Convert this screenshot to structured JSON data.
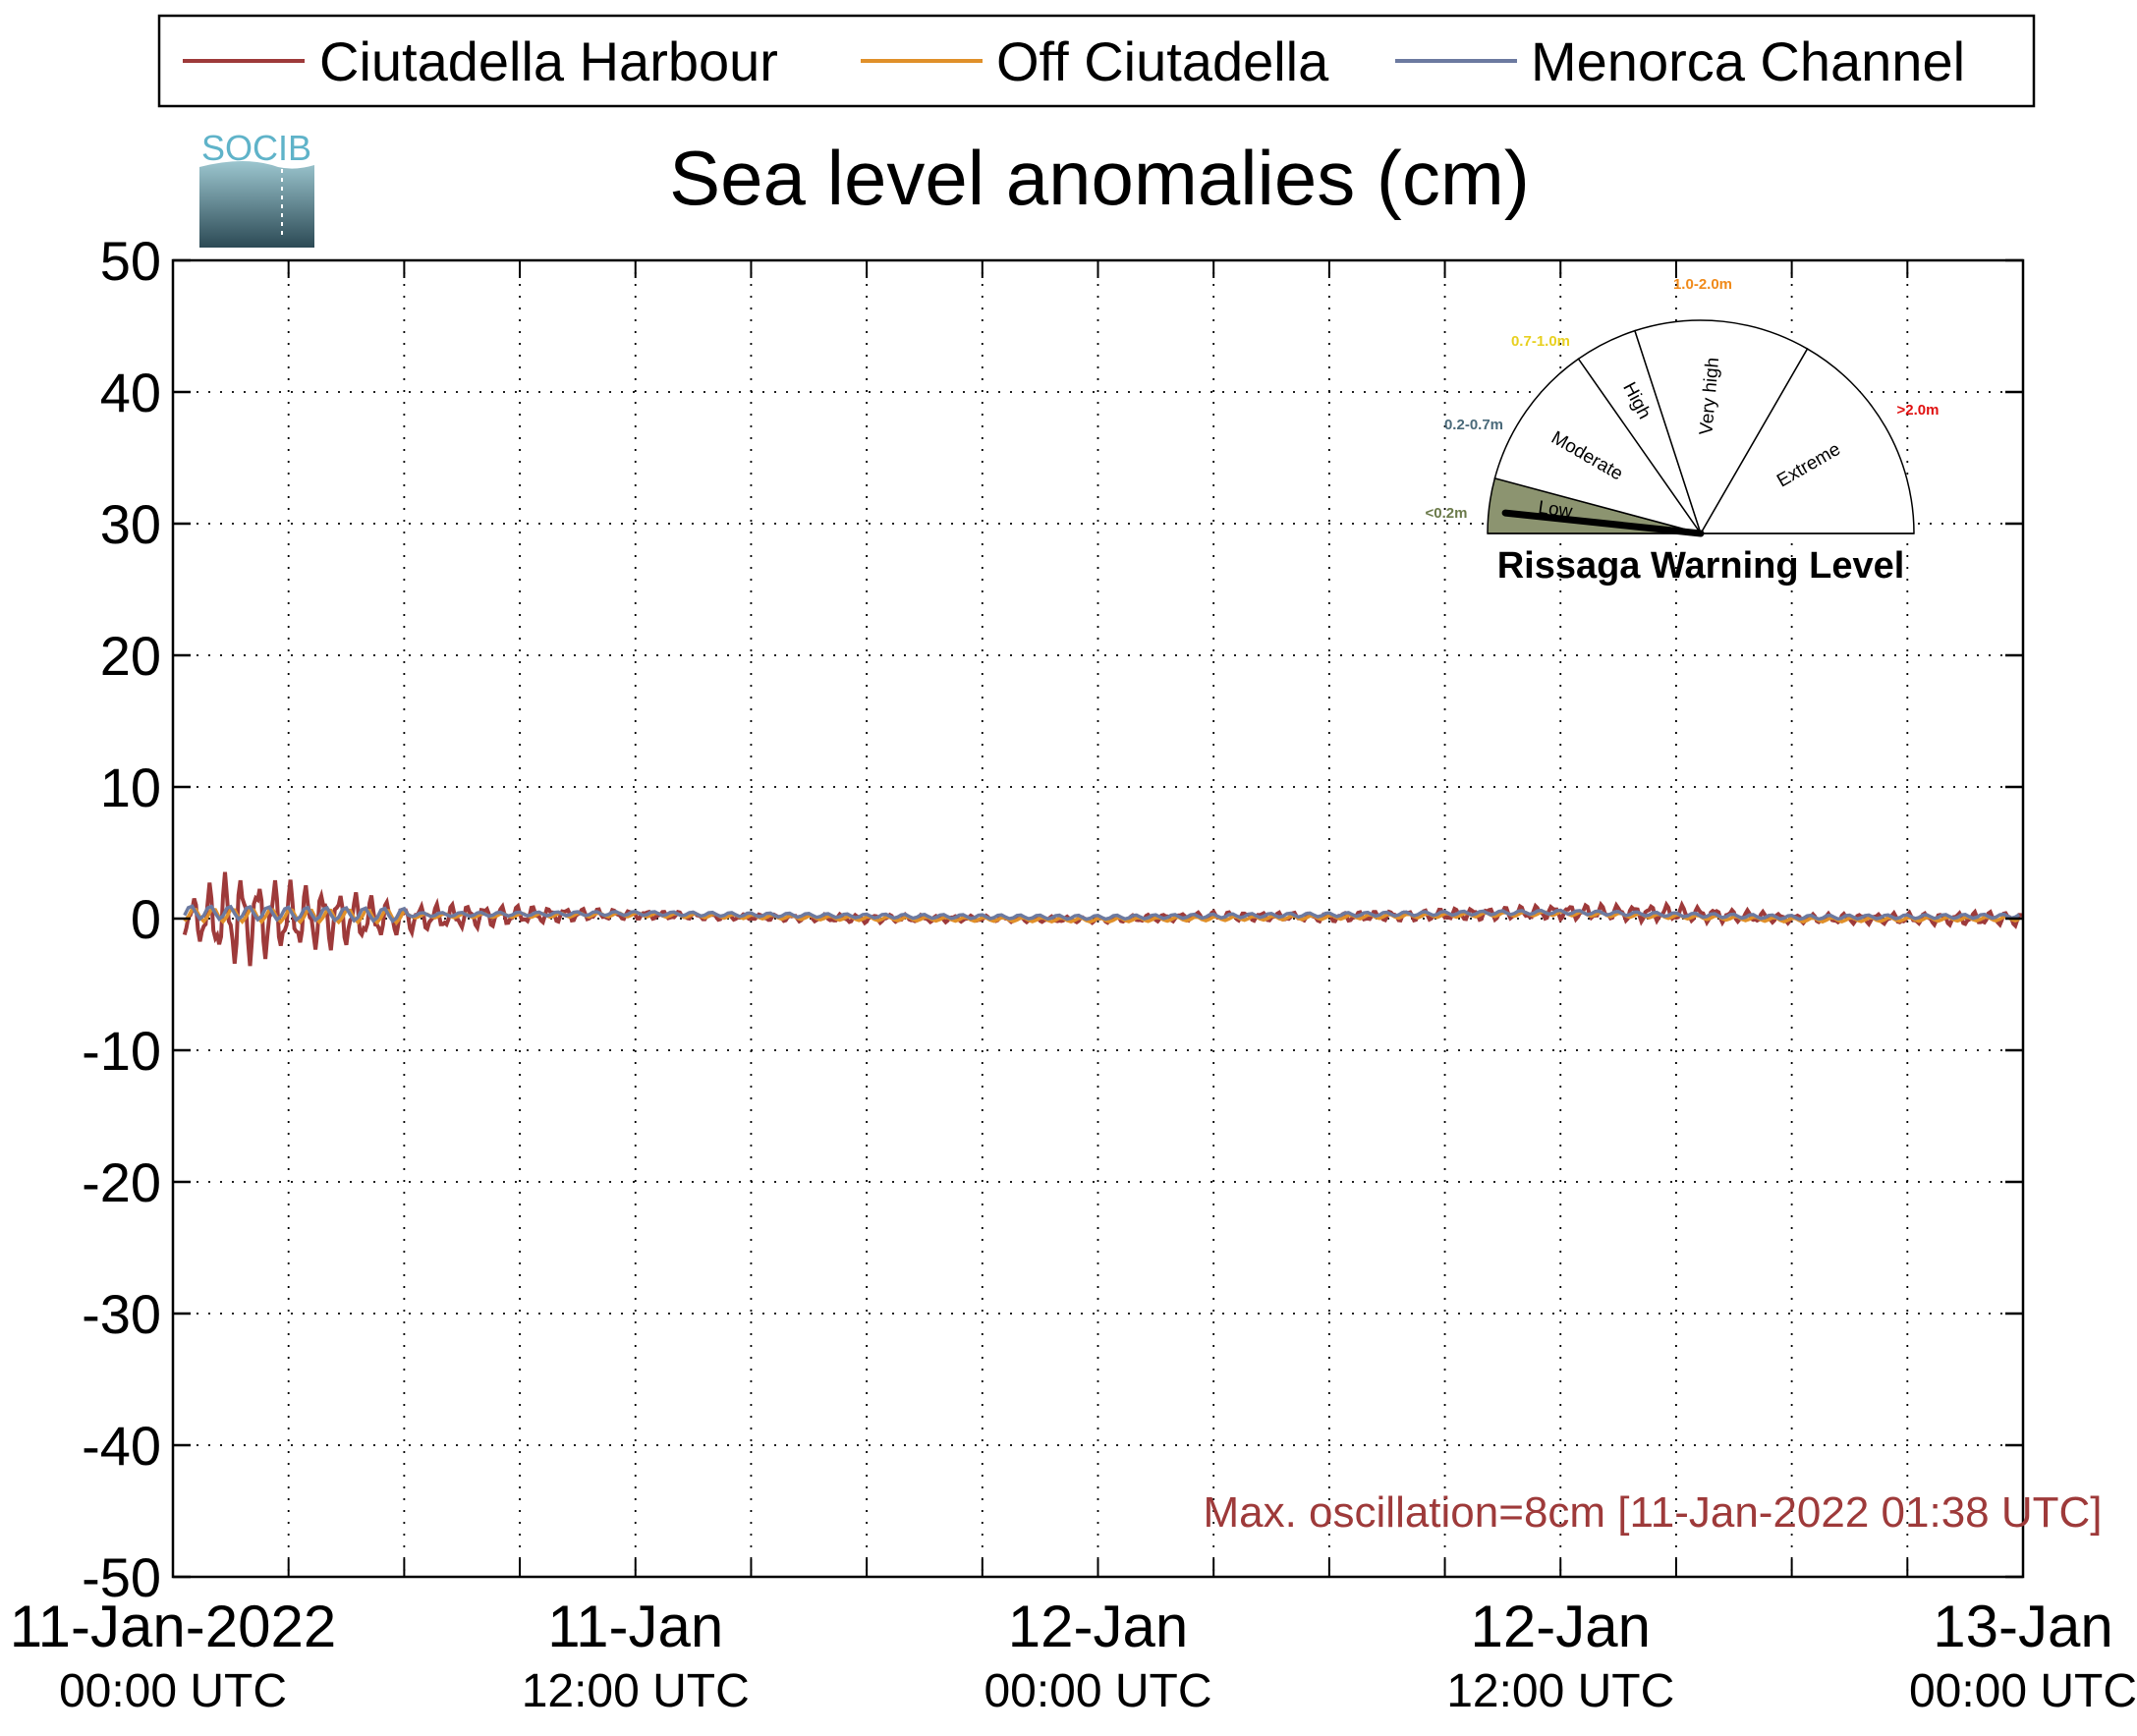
{
  "logo": {
    "text": "SOCIB"
  },
  "chart_data": {
    "type": "line",
    "title": "Sea level anomalies (cm)",
    "ylim": [
      -50,
      50
    ],
    "yticks": [
      50,
      40,
      30,
      20,
      10,
      0,
      -10,
      -20,
      -30,
      -40,
      -50
    ],
    "x_range": [
      "2022-01-11T00:00Z",
      "2022-01-13T00:00Z"
    ],
    "x_ticks_major": [
      {
        "time": "2022-01-11T00:00Z",
        "date_label": "11-Jan-2022",
        "time_label": "00:00 UTC"
      },
      {
        "time": "2022-01-11T12:00Z",
        "date_label": "11-Jan",
        "time_label": "12:00 UTC"
      },
      {
        "time": "2022-01-12T00:00Z",
        "date_label": "12-Jan",
        "time_label": "00:00 UTC"
      },
      {
        "time": "2022-01-12T12:00Z",
        "date_label": "12-Jan",
        "time_label": "12:00 UTC"
      },
      {
        "time": "2022-01-13T00:00Z",
        "date_label": "13-Jan",
        "time_label": "00:00 UTC"
      }
    ],
    "grid": true,
    "legend_position": "top",
    "series": [
      {
        "name": "Ciutadella Harbour",
        "color": "#9e3a3a",
        "x_hours": [
          0,
          1.5,
          3,
          4.5,
          6,
          8,
          10,
          12,
          15,
          18,
          21,
          24,
          27,
          30,
          33,
          36,
          39,
          42,
          45,
          48
        ],
        "amplitude_cm": [
          0.5,
          3.5,
          2.5,
          2,
          1,
          0.8,
          0.5,
          0.3,
          0.2,
          0.3,
          0.2,
          0.2,
          0.3,
          0.3,
          0.4,
          0.5,
          0.6,
          0.3,
          0.4,
          0.5
        ],
        "mean_cm": [
          0,
          0,
          0.1,
          0,
          0,
          0.2,
          0.3,
          0.3,
          0.1,
          0,
          0,
          -0.1,
          0.2,
          0.1,
          0.3,
          0.5,
          0.4,
          0,
          0,
          0
        ]
      },
      {
        "name": "Off Ciutadella",
        "color": "#e0902a",
        "x_hours": [
          0,
          6,
          12,
          18,
          24,
          30,
          36,
          42,
          48
        ],
        "values": [
          0.3,
          0.2,
          0.3,
          0.0,
          -0.1,
          0.1,
          0.4,
          -0.1,
          0.0
        ]
      },
      {
        "name": "Menorca Channel",
        "color": "#6c7aa0",
        "x_hours": [
          0,
          6,
          12,
          18,
          24,
          30,
          36,
          42,
          48
        ],
        "values": [
          0.5,
          0.3,
          0.4,
          0.2,
          0.1,
          0.3,
          0.5,
          0.1,
          0.2
        ]
      }
    ],
    "annotation": "Max. oscillation=8cm [11-Jan-2022 01:38 UTC]",
    "annotation_color": "#9e3a3a",
    "gauge": {
      "title": "Rissaga Warning Level",
      "needle_value": "Low",
      "sectors": [
        {
          "name": "Low",
          "range": "<0.2m",
          "range_color": "#6b7a4a",
          "fill": "#8c9470"
        },
        {
          "name": "Moderate",
          "range": "0.2-0.7m",
          "range_color": "#4a6a7a",
          "fill": "#ffffff"
        },
        {
          "name": "High",
          "range": "0.7-1.0m",
          "range_color": "#e8d020",
          "fill": "#ffffff"
        },
        {
          "name": "Very high",
          "range": "1.0-2.0m",
          "range_color": "#f08a1a",
          "fill": "#ffffff"
        },
        {
          "name": "Extreme",
          "range": ">2.0m",
          "range_color": "#e01010",
          "fill": "#ffffff"
        }
      ]
    }
  }
}
